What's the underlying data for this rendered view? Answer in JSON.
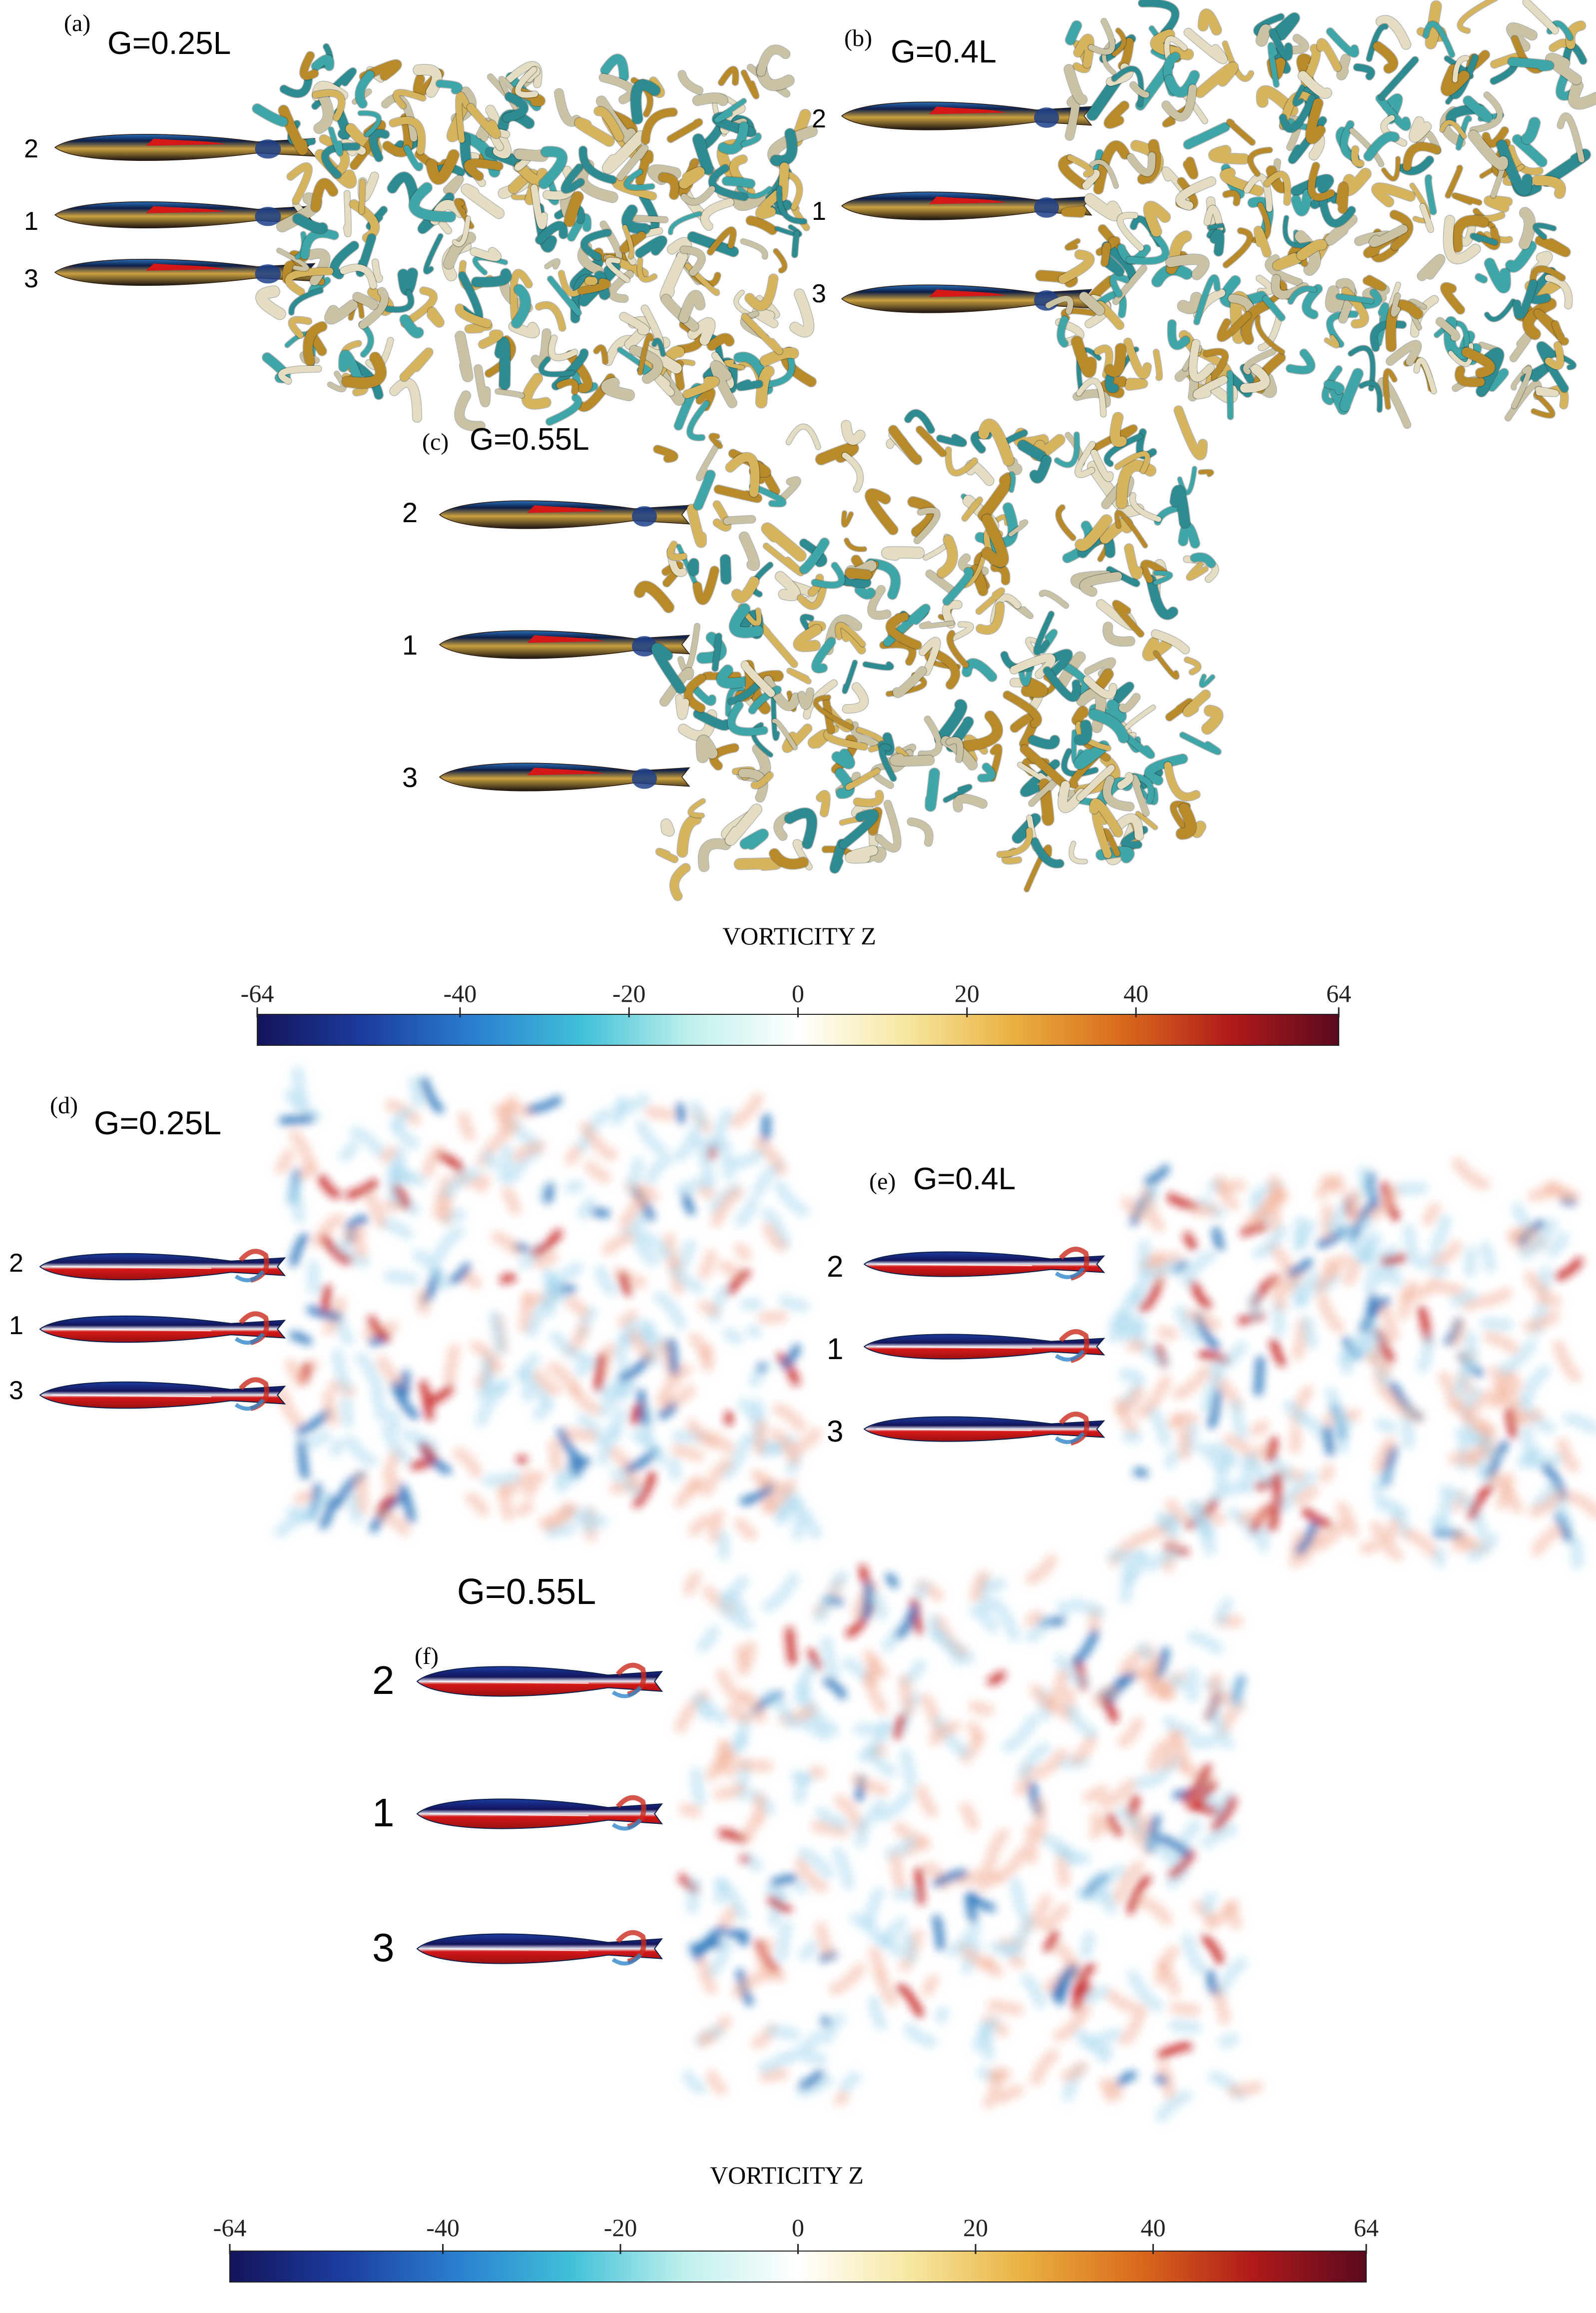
{
  "colors": {
    "colormap": [
      "#14145a",
      "#1c3da0",
      "#2a7fd0",
      "#40c0d8",
      "#bff0ec",
      "#ffffff",
      "#f6e7a0",
      "#e9b040",
      "#d96a1c",
      "#b01a1a",
      "#5a0a1e"
    ],
    "fish_red": "#d41818",
    "fish_dark": "#0d1f4a",
    "fish_gold": "#c9a040",
    "iso_gold": "#d6b45e",
    "iso_teal": "#3ea6a8",
    "iso_pale": "#e4ddc2",
    "vort_red": "#cc2a1e",
    "vort_blue": "#2f86c9"
  },
  "panels": [
    {
      "id": "a",
      "tag": "(a)",
      "title": "G=0.25L",
      "style": "isosurface",
      "fish_labels": [
        "2",
        "1",
        "3"
      ]
    },
    {
      "id": "b",
      "tag": "(b)",
      "title": "G=0.4L",
      "style": "isosurface",
      "fish_labels": [
        "2",
        "1",
        "3"
      ]
    },
    {
      "id": "c",
      "tag": "(c)",
      "title": "G=0.55L",
      "style": "isosurface",
      "fish_labels": [
        "2",
        "1",
        "3"
      ]
    },
    {
      "id": "d",
      "tag": "(d)",
      "title": "G=0.25L",
      "style": "contour",
      "fish_labels": [
        "2",
        "1",
        "3"
      ]
    },
    {
      "id": "e",
      "tag": "(e)",
      "title": "G=0.4L",
      "style": "contour",
      "fish_labels": [
        "2",
        "1",
        "3"
      ]
    },
    {
      "id": "f",
      "tag": "(f)",
      "title": "G=0.55L",
      "style": "contour",
      "fish_labels": [
        "2",
        "1",
        "3"
      ]
    }
  ],
  "colorbars": [
    {
      "title": "VORTICITY Z",
      "ticks": [
        "-64",
        "-40",
        "-20",
        "0",
        "20",
        "40",
        "64"
      ],
      "tick_values": [
        -64,
        -40,
        -20,
        0,
        20,
        40,
        64
      ],
      "range": [
        -64,
        64
      ]
    },
    {
      "title": "VORTICITY Z",
      "ticks": [
        "-64",
        "-40",
        "-20",
        "0",
        "20",
        "40",
        "64"
      ],
      "tick_values": [
        -64,
        -40,
        -20,
        0,
        20,
        40,
        64
      ],
      "range": [
        -64,
        64
      ]
    }
  ]
}
